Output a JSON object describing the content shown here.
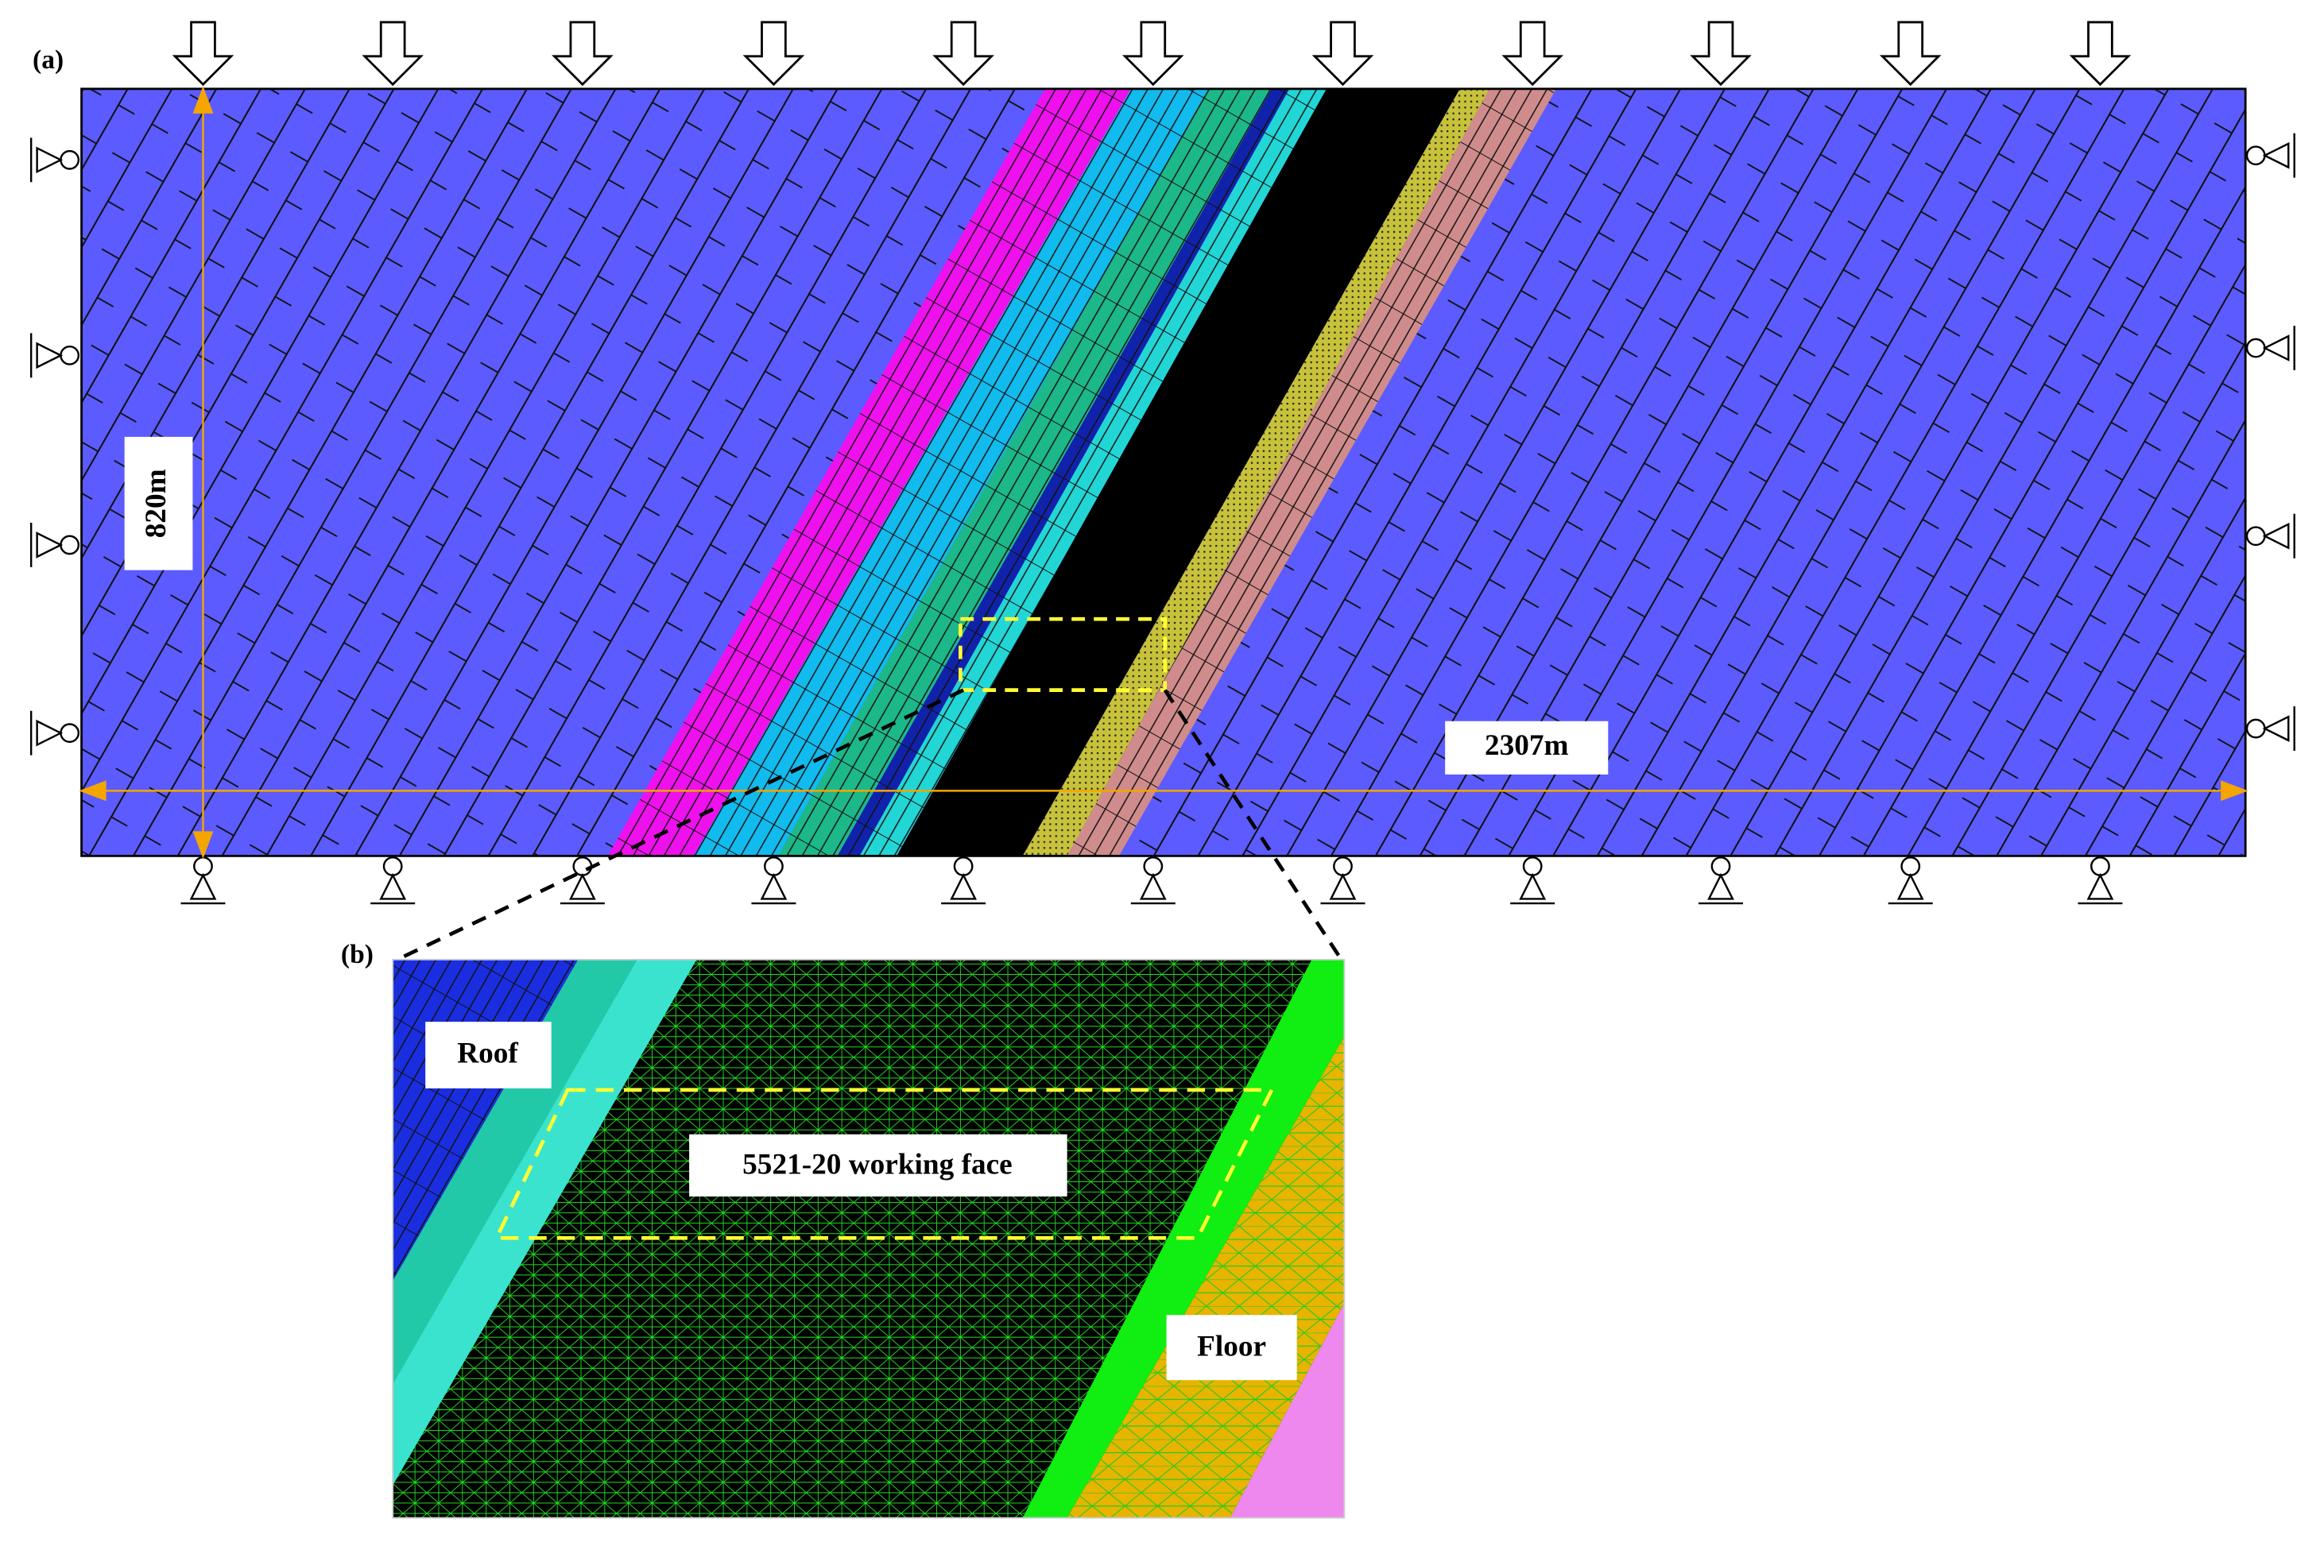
{
  "panel_a": {
    "label": "(a)",
    "height_label": "820m",
    "width_label": "2307m"
  },
  "panel_b": {
    "label": "(b)",
    "roof_label": "Roof",
    "working_face_label": "5521-20 working face",
    "floor_label": "Floor"
  }
}
